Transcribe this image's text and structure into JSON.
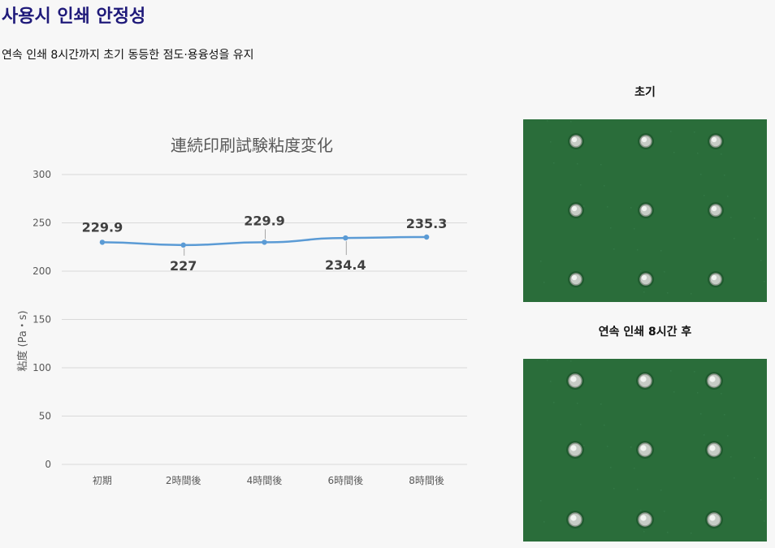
{
  "page": {
    "title": "사용시 인쇄 안정성",
    "subtitle": "연속 인쇄 8시간까지 초기 동등한 점도·용융성을 유지"
  },
  "chart_data": {
    "type": "line",
    "title": "連続印刷試験粘度変化",
    "xlabel": "",
    "ylabel": "粘度 (Pa・s)",
    "categories": [
      "初期",
      "2時間後",
      "4時間後",
      "6時間後",
      "8時間後"
    ],
    "series": [
      {
        "values": [
          229.9,
          227,
          229.9,
          234.4,
          235.3
        ],
        "color": "#5b9bd5"
      }
    ],
    "data_labels": [
      "229.9",
      "227",
      "229.9",
      "234.4",
      "235.3"
    ],
    "yticks": [
      "0",
      "50",
      "100",
      "150",
      "200",
      "250",
      "300"
    ],
    "ylim": [
      0,
      300
    ],
    "grid": true,
    "legend": "none"
  },
  "photos": {
    "initial": {
      "label": "초기",
      "board_color": "#2a6d3a"
    },
    "after": {
      "label": "연속 인쇄 8시간 후",
      "board_color": "#2a6d3a"
    }
  }
}
